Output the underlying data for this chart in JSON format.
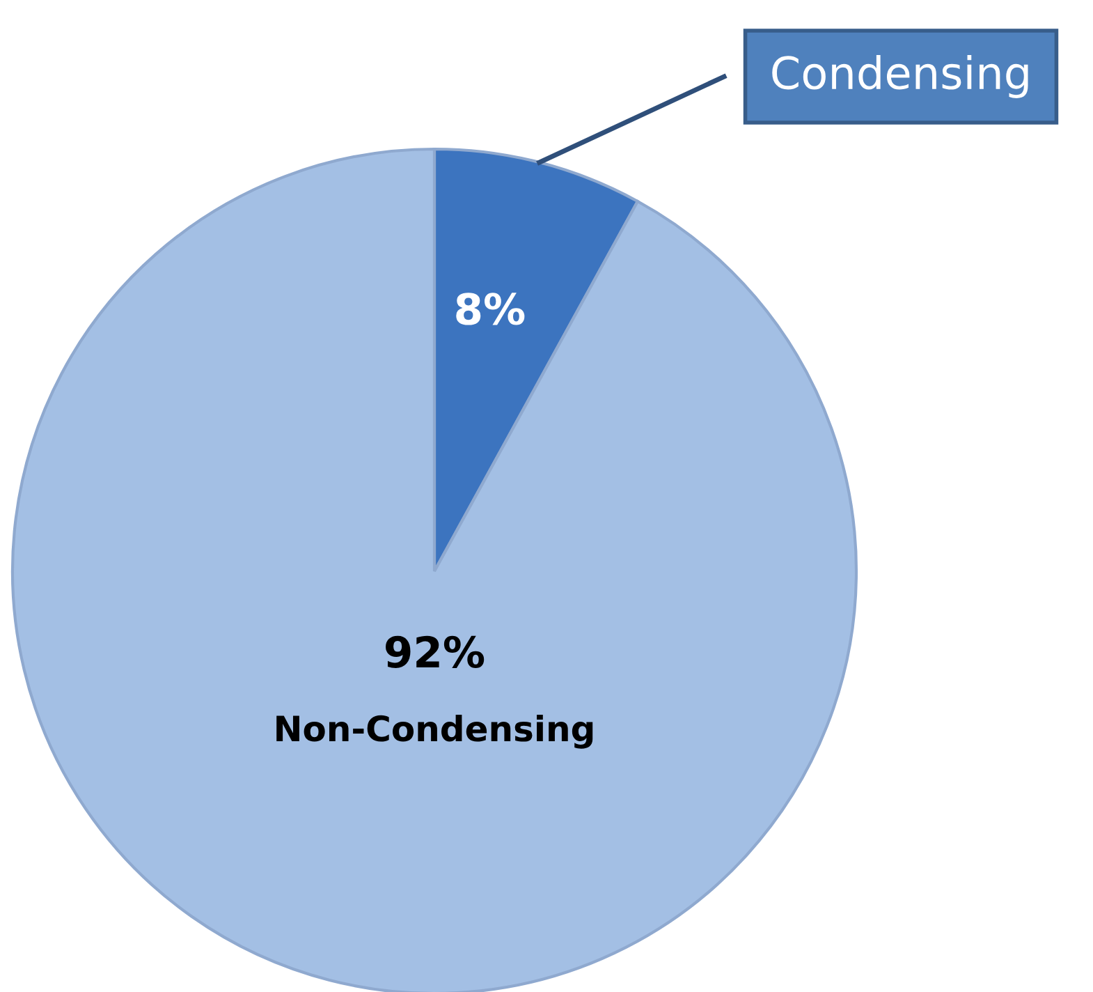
{
  "chart_data": {
    "type": "pie",
    "categories": [
      "Condensing",
      "Non-Condensing"
    ],
    "values": [
      8,
      92
    ],
    "colors": [
      "#3c74bf",
      "#a3bfe4"
    ],
    "value_labels": [
      "8%",
      "92%"
    ],
    "legend": false
  }
}
